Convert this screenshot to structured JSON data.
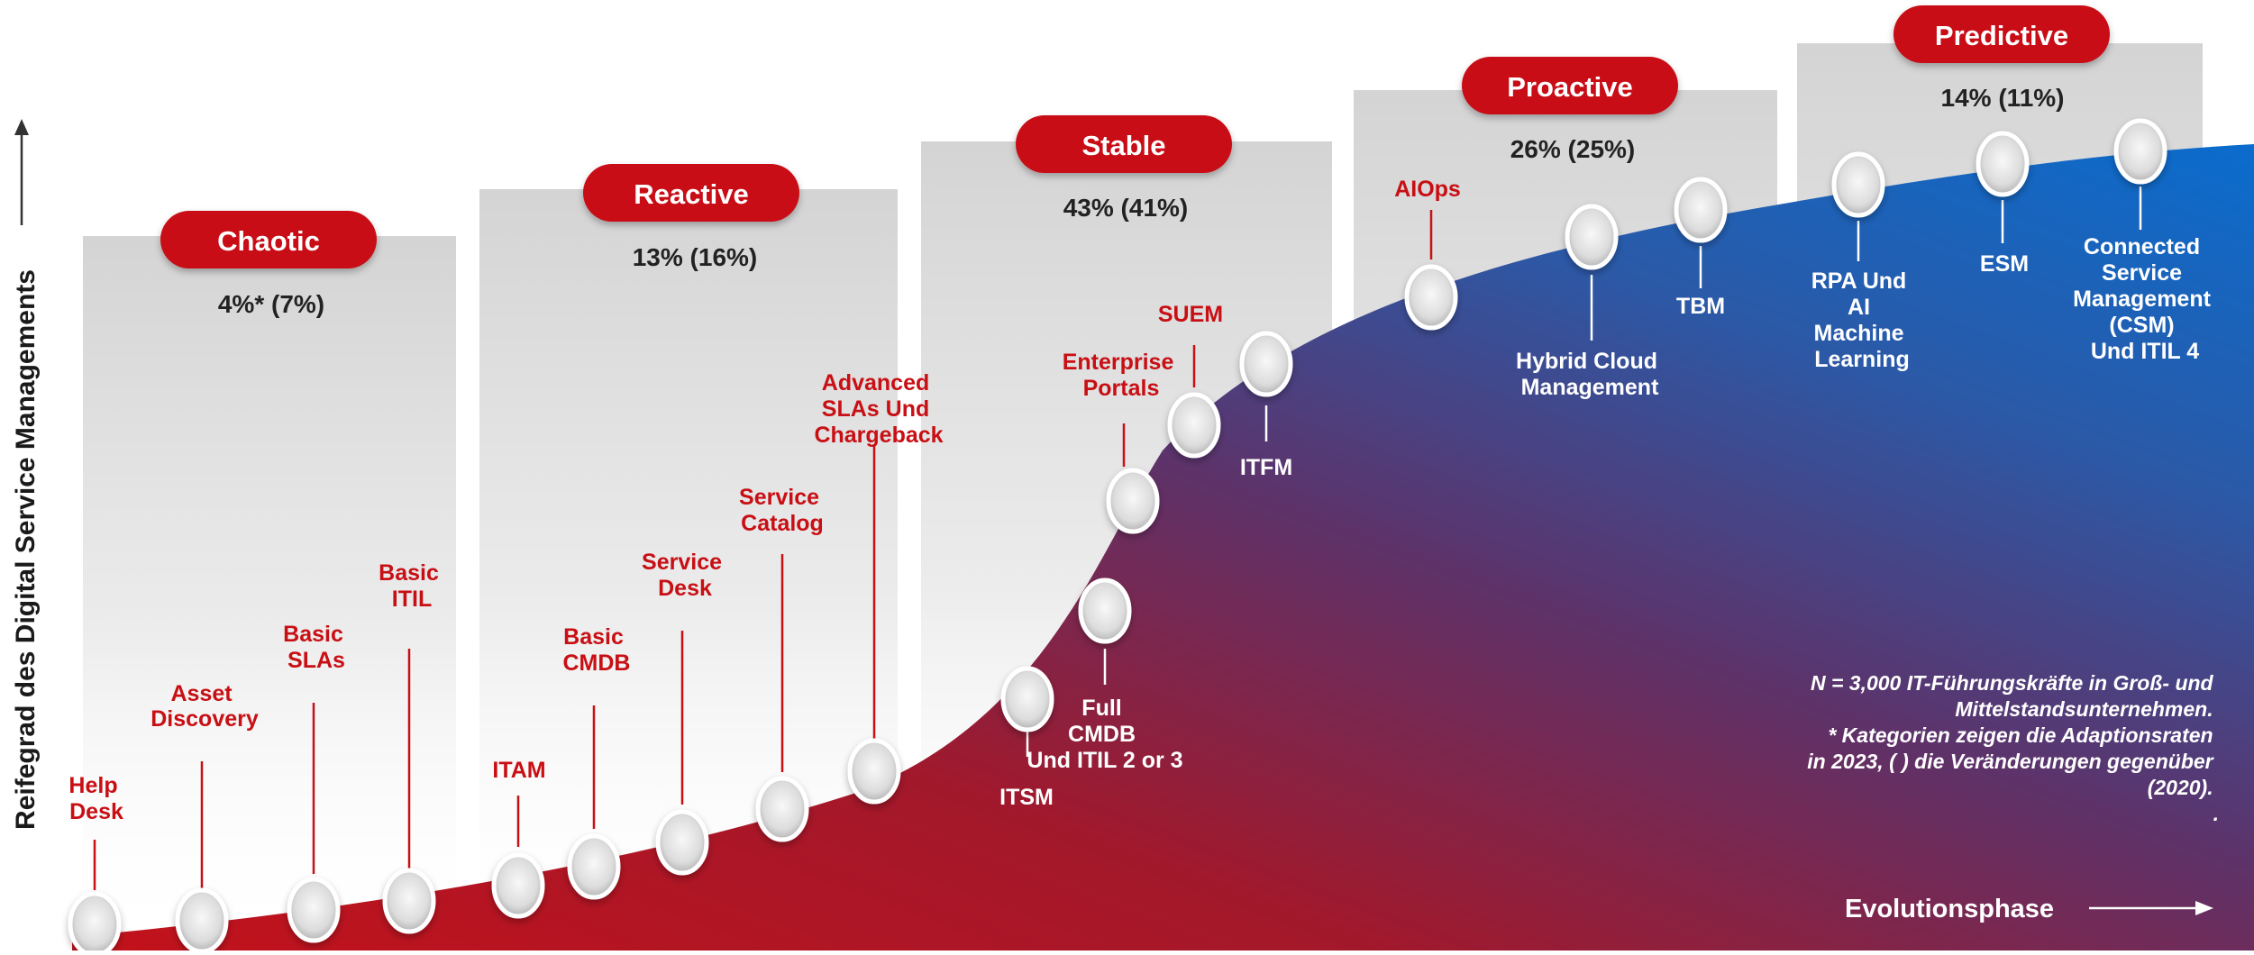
{
  "y_axis_label": "Reifegrad des Digital Service Managements",
  "x_axis_label": "Evolutionsphase",
  "stages": [
    {
      "title": "Chaotic",
      "pct": "4%* (7%)"
    },
    {
      "title": "Reactive",
      "pct": "13% (16%)"
    },
    {
      "title": "Stable",
      "pct": "43% (41%)"
    },
    {
      "title": "Proactive",
      "pct": "26% (25%)"
    },
    {
      "title": "Predictive",
      "pct": "14% (11%)"
    }
  ],
  "milestones": [
    {
      "lines": [
        "Help",
        "Desk"
      ]
    },
    {
      "lines": [
        "Asset",
        "Discovery"
      ]
    },
    {
      "lines": [
        "Basic",
        "SLAs"
      ]
    },
    {
      "lines": [
        "Basic",
        "ITIL"
      ]
    },
    {
      "lines": [
        "ITAM"
      ]
    },
    {
      "lines": [
        "Basic",
        "CMDB"
      ]
    },
    {
      "lines": [
        "Service",
        "Desk"
      ]
    },
    {
      "lines": [
        "Service",
        "Catalog"
      ]
    },
    {
      "lines": [
        "Advanced",
        "SLAs Und",
        "Chargeback"
      ]
    },
    {
      "lines": [
        "ITSM"
      ]
    },
    {
      "lines": [
        "Full",
        "CMDB",
        "Und ITIL 2 or 3"
      ]
    },
    {
      "lines": [
        "Enterprise",
        "Portals"
      ]
    },
    {
      "lines": [
        "SUEM"
      ]
    },
    {
      "lines": [
        "ITFM"
      ]
    },
    {
      "lines": [
        "AIOps"
      ]
    },
    {
      "lines": [
        "Hybrid Cloud",
        "Management"
      ]
    },
    {
      "lines": [
        "TBM"
      ]
    },
    {
      "lines": [
        "RPA Und",
        "AI",
        "Machine",
        "Learning"
      ]
    },
    {
      "lines": [
        "ESM"
      ]
    },
    {
      "lines": [
        "Connected",
        "Service",
        "Management",
        "(CSM)",
        "Und ITIL 4"
      ]
    }
  ],
  "footnote": [
    "N = 3,000 IT-Führungskräfte in Groß- und",
    "Mittelstandsunternehmen.",
    "* Kategorien zeigen die Adaptionsraten",
    "in 2023, ( ) die Veränderungen gegenüber",
    "(2020).",
    "."
  ],
  "colors": {
    "accent_red": "#c80f14",
    "accent_blue": "#1565c0",
    "gradient_purple": "#5a2d6e",
    "text_dark": "#222222"
  }
}
